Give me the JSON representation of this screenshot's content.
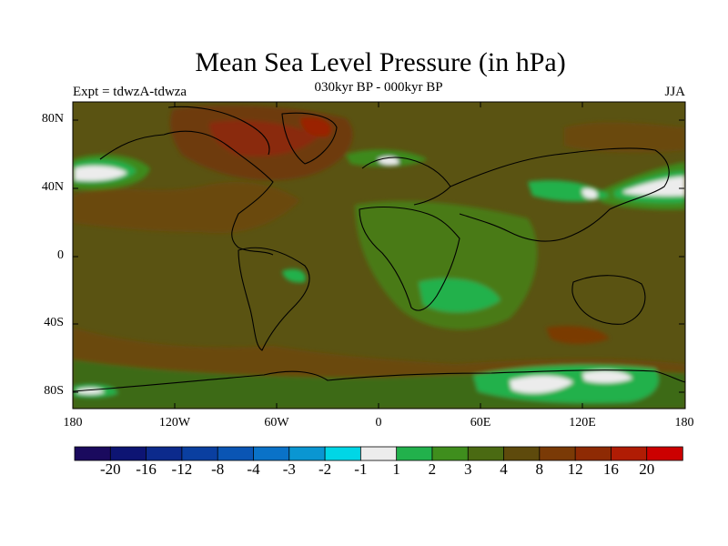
{
  "title": "Mean Sea Level Pressure (in hPa)",
  "subtitle": "030kyr BP - 000kyr BP",
  "experiment": "Expt = tdwzA-tdwza",
  "season": "JJA",
  "lat_labels": [
    "80N",
    "40N",
    "0",
    "40S",
    "80S"
  ],
  "lon_labels": [
    "180",
    "120W",
    "60W",
    "0",
    "60E",
    "120E",
    "180"
  ],
  "colorbar": {
    "colors": [
      "#1a0a5e",
      "#0d1473",
      "#0c2a8c",
      "#0a3fa0",
      "#0a55b4",
      "#0a72c8",
      "#0a96d2",
      "#00d6e6",
      "#ececec",
      "#22b14c",
      "#3f8e1d",
      "#4a6a12",
      "#5e4a0c",
      "#7a3a06",
      "#8e2a04",
      "#b01c04",
      "#cc0000"
    ],
    "labels": [
      "-20",
      "-16",
      "-12",
      "-8",
      "-4",
      "-3",
      "-2",
      "-1",
      "1",
      "2",
      "3",
      "4",
      "8",
      "12",
      "16",
      "20"
    ]
  },
  "colors": {
    "background_field": "#5a5312",
    "positive_low": "#3d6b14",
    "positive_mid": "#22b14c",
    "near_zero": "#ececec",
    "positive_high": "#6e3a0a",
    "positive_very_high": "#8a2a08"
  }
}
